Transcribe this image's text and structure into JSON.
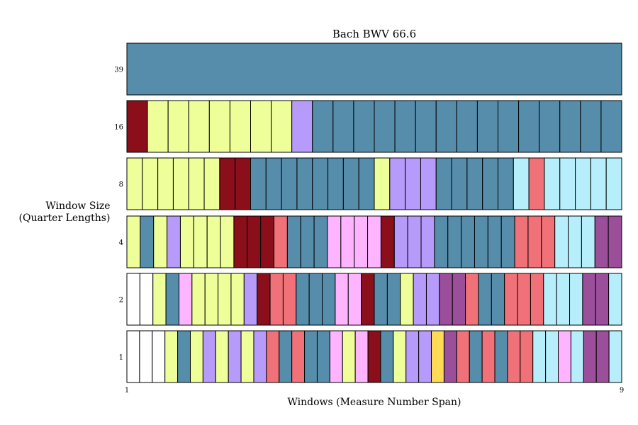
{
  "chart_data": {
    "type": "heatmap",
    "title": "Bach BWV 66.6",
    "xlabel": "Windows (Measure Number Span)",
    "ylabel_line1": "Window Size",
    "ylabel_line2": "(Quarter Lengths)",
    "x_ticks": [
      "1",
      "9"
    ],
    "x_range": [
      1,
      9
    ],
    "grid": false,
    "legend": "none",
    "color_key": {
      "W": "#ffffff",
      "Y": "#eeff99",
      "B": "#568dab",
      "R": "#8b0e1b",
      "S": "#f07278",
      "V": "#b79bfa",
      "P": "#ffb4ff",
      "C": "#b6eefb",
      "M": "#9b4f9b",
      "G": "#ffda55"
    },
    "rows": [
      {
        "window_size": "39",
        "cells": [
          "B"
        ]
      },
      {
        "window_size": "16",
        "cells": [
          "R",
          "Y",
          "Y",
          "Y",
          "Y",
          "Y",
          "Y",
          "Y",
          "V",
          "B",
          "B",
          "B",
          "B",
          "B",
          "B",
          "B",
          "B",
          "B",
          "B",
          "B",
          "B",
          "B",
          "B",
          "B"
        ]
      },
      {
        "window_size": "8",
        "cells": [
          "Y",
          "Y",
          "Y",
          "Y",
          "Y",
          "Y",
          "R",
          "R",
          "B",
          "B",
          "B",
          "B",
          "B",
          "B",
          "B",
          "B",
          "Y",
          "V",
          "V",
          "V",
          "B",
          "B",
          "B",
          "B",
          "B",
          "C",
          "S",
          "C",
          "C",
          "C",
          "C",
          "C"
        ]
      },
      {
        "window_size": "4",
        "cells": [
          "Y",
          "B",
          "Y",
          "V",
          "Y",
          "Y",
          "Y",
          "Y",
          "R",
          "R",
          "R",
          "S",
          "B",
          "B",
          "B",
          "P",
          "P",
          "P",
          "P",
          "R",
          "V",
          "V",
          "V",
          "B",
          "B",
          "B",
          "B",
          "B",
          "B",
          "S",
          "S",
          "S",
          "C",
          "C",
          "C",
          "M",
          "M"
        ]
      },
      {
        "window_size": "2",
        "cells": [
          "W",
          "W",
          "Y",
          "B",
          "P",
          "Y",
          "Y",
          "Y",
          "Y",
          "V",
          "R",
          "S",
          "S",
          "B",
          "B",
          "B",
          "P",
          "P",
          "R",
          "B",
          "B",
          "Y",
          "V",
          "V",
          "M",
          "M",
          "S",
          "B",
          "B",
          "S",
          "S",
          "S",
          "C",
          "C",
          "C",
          "M",
          "M",
          "C"
        ]
      },
      {
        "window_size": "1",
        "cells": [
          "W",
          "W",
          "W",
          "Y",
          "B",
          "Y",
          "V",
          "Y",
          "V",
          "Y",
          "V",
          "S",
          "B",
          "S",
          "B",
          "B",
          "P",
          "Y",
          "P",
          "R",
          "B",
          "Y",
          "V",
          "V",
          "G",
          "M",
          "S",
          "B",
          "S",
          "B",
          "S",
          "S",
          "C",
          "C",
          "P",
          "C",
          "M",
          "M",
          "C"
        ]
      }
    ]
  }
}
